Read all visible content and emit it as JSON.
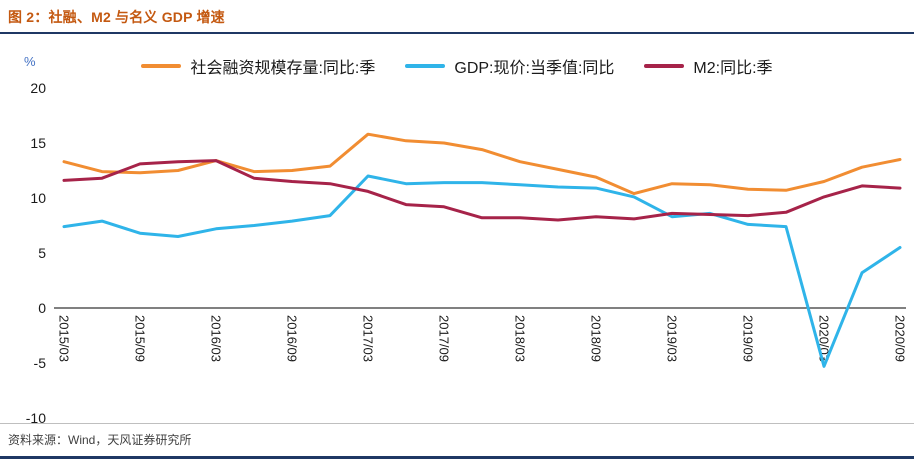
{
  "header": {
    "title": "图 2：社融、M2 与名义 GDP 增速"
  },
  "footer": {
    "source": "资料来源：Wind，天风证券研究所"
  },
  "colors": {
    "rule_navy": "#1F3864",
    "title": "#C45911",
    "unit_label": "#4472C4",
    "axis": "#000000",
    "social_financing": "#F18D32",
    "gdp": "#2FB4E9",
    "m2": "#A62349"
  },
  "chart_data": {
    "type": "line",
    "title": "社融、M2 与名义 GDP 增速",
    "y_unit": "%",
    "ylim": [
      -10,
      20
    ],
    "y_ticks": [
      20,
      15,
      10,
      5,
      0,
      -5,
      -10
    ],
    "x_tick_step": 2,
    "grid": false,
    "legend_position": "top",
    "x": [
      "2015/03",
      "2015/06",
      "2015/09",
      "2015/12",
      "2016/03",
      "2016/06",
      "2016/09",
      "2016/12",
      "2017/03",
      "2017/06",
      "2017/09",
      "2017/12",
      "2018/03",
      "2018/06",
      "2018/09",
      "2018/12",
      "2019/03",
      "2019/06",
      "2019/09",
      "2019/12",
      "2020/03",
      "2020/06",
      "2020/09"
    ],
    "series": [
      {
        "id": "social-financing",
        "name": "社会融资规模存量:同比:季",
        "color": "#F18D32",
        "values": [
          13.3,
          12.4,
          12.3,
          12.5,
          13.4,
          12.4,
          12.5,
          12.9,
          15.8,
          15.2,
          15.0,
          14.4,
          13.3,
          12.6,
          11.9,
          10.4,
          11.3,
          11.2,
          10.8,
          10.7,
          11.5,
          12.8,
          13.5
        ]
      },
      {
        "id": "gdp",
        "name": "GDP:现价:当季值:同比",
        "color": "#2FB4E9",
        "values": [
          7.4,
          7.9,
          6.8,
          6.5,
          7.2,
          7.5,
          7.9,
          8.4,
          12.0,
          11.3,
          11.4,
          11.4,
          11.2,
          11.0,
          10.9,
          10.1,
          8.3,
          8.6,
          7.6,
          7.4,
          -5.3,
          3.2,
          5.5
        ]
      },
      {
        "id": "m2",
        "name": "M2:同比:季",
        "color": "#A62349",
        "values": [
          11.6,
          11.8,
          13.1,
          13.3,
          13.4,
          11.8,
          11.5,
          11.3,
          10.6,
          9.4,
          9.2,
          8.2,
          8.2,
          8.0,
          8.3,
          8.1,
          8.6,
          8.5,
          8.4,
          8.7,
          10.1,
          11.1,
          10.9
        ]
      }
    ]
  }
}
